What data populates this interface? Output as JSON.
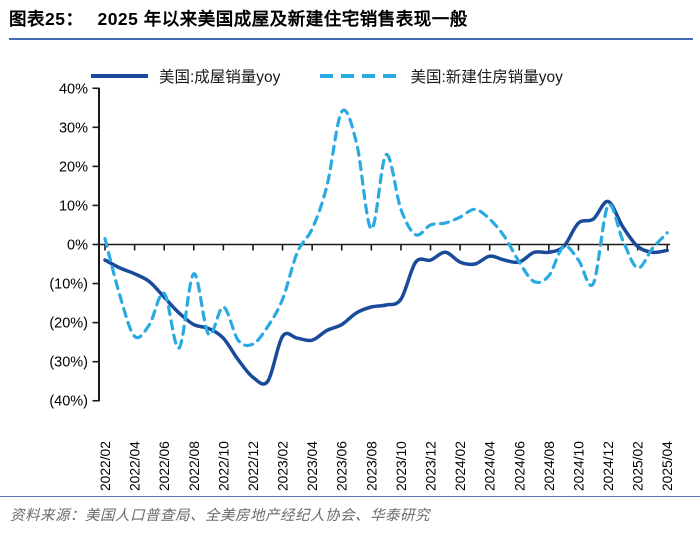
{
  "title": {
    "prefix": "图表25：",
    "text": "2025 年以来美国成屋及新建住宅销售表现一般"
  },
  "legend": [
    {
      "label": "美国:成屋销量yoy",
      "color": "#1a4a9a",
      "style": "solid"
    },
    {
      "label": "美国:新建住房销量yoy",
      "color": "#29abe2",
      "style": "dashed"
    }
  ],
  "source": "资料来源：美国人口普查局、全美房地产经纪人协会、华泰研究",
  "colors": {
    "title_underline": "#3f6cb5",
    "bottom_divider": "#5578b4",
    "axis": "#1a1a1a",
    "existing_line": "#1a4a9a",
    "new_line": "#29abe2"
  },
  "chart_data": {
    "type": "line",
    "title": "2025 年以来美国成屋及新建住宅销售表现一般",
    "xlabel": "",
    "ylabel": "",
    "ylim": [
      -40,
      40
    ],
    "grid": false,
    "legend_position": "top",
    "ytick_values": [
      40,
      30,
      20,
      10,
      0,
      -10,
      -20,
      -30,
      -40
    ],
    "ytick_labels": [
      "40%",
      "30%",
      "20%",
      "10%",
      "0%",
      "(10%)",
      "(20%)",
      "(30%)",
      "(40%)"
    ],
    "xtick_every": 2,
    "categories": [
      "2022/02",
      "2022/03",
      "2022/04",
      "2022/05",
      "2022/06",
      "2022/07",
      "2022/08",
      "2022/09",
      "2022/10",
      "2022/11",
      "2022/12",
      "2023/01",
      "2023/02",
      "2023/03",
      "2023/04",
      "2023/05",
      "2023/06",
      "2023/07",
      "2023/08",
      "2023/09",
      "2023/10",
      "2023/11",
      "2023/12",
      "2024/01",
      "2024/02",
      "2024/03",
      "2024/04",
      "2024/05",
      "2024/06",
      "2024/07",
      "2024/08",
      "2024/09",
      "2024/10",
      "2024/11",
      "2024/12",
      "2025/01",
      "2025/02",
      "2025/03",
      "2025/04"
    ],
    "series": [
      {
        "name": "美国:成屋销量yoy",
        "style": "solid",
        "color": "#1a4a9a",
        "values": [
          -4,
          -6,
          -7.5,
          -9.5,
          -13.5,
          -17.5,
          -20.5,
          -21.5,
          -24,
          -29.5,
          -34,
          -35,
          -23.5,
          -24,
          -24.5,
          -22,
          -20.5,
          -17.5,
          -16,
          -15.5,
          -14,
          -4.5,
          -4,
          -2,
          -4.5,
          -5,
          -3,
          -4,
          -4.5,
          -2,
          -2,
          -0.5,
          5.5,
          6.5,
          11,
          4.5,
          -0.5,
          -2,
          -1.5
        ]
      },
      {
        "name": "美国:新建住房销量yoy",
        "style": "dashed",
        "color": "#29abe2",
        "values": [
          1.5,
          -13,
          -23.5,
          -20.5,
          -12.5,
          -26.5,
          -7.5,
          -23,
          -16,
          -24.5,
          -25.5,
          -21,
          -14,
          -2,
          4,
          15,
          34,
          26,
          4,
          23,
          9,
          2.5,
          5,
          5.5,
          7,
          9,
          6.5,
          2,
          -4.5,
          -9.5,
          -8,
          -0.5,
          -4,
          -10,
          10,
          1,
          -6,
          -1,
          3
        ]
      }
    ]
  }
}
